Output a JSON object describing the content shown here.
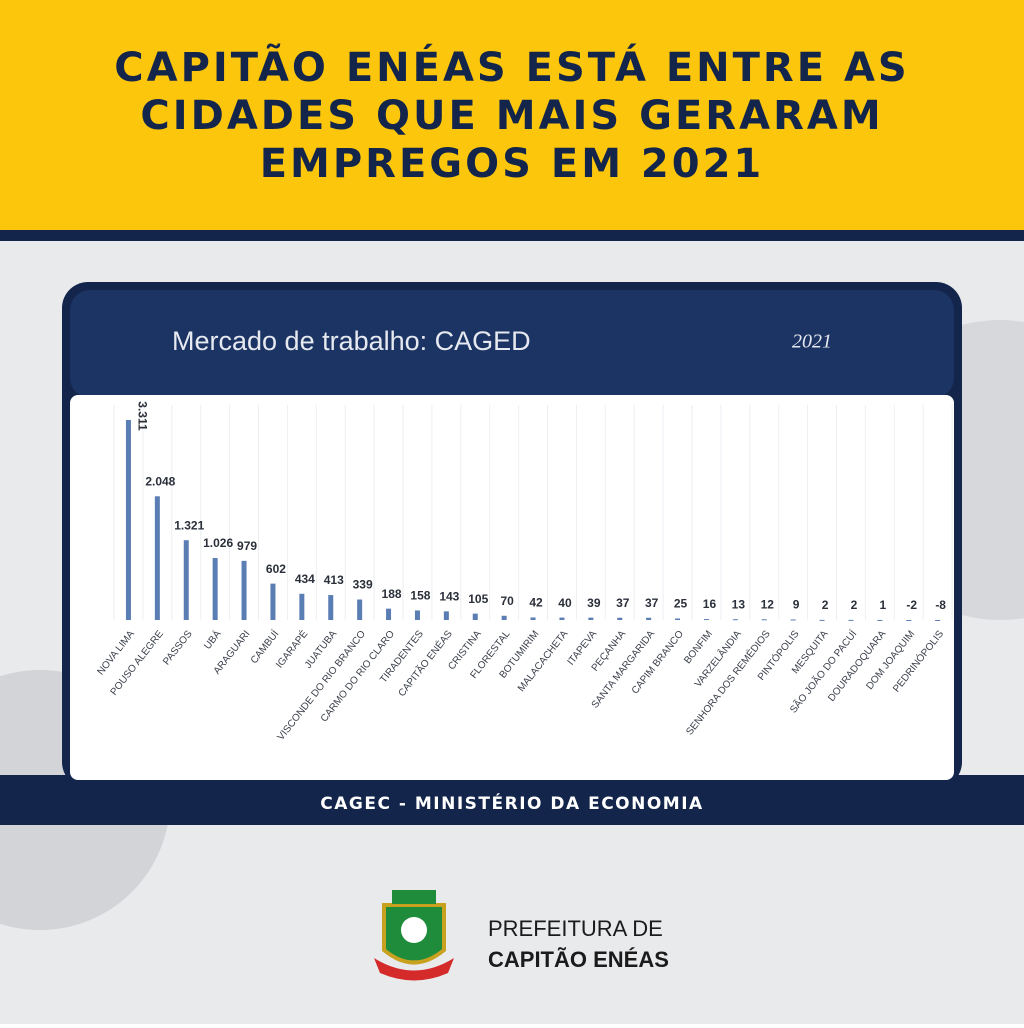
{
  "header": {
    "title_lines": [
      "CAPITÃO ENÉAS ESTÁ ENTRE AS",
      "CIDADES QUE MAIS GERARAM",
      "EMPREGOS EM 2021"
    ]
  },
  "chart_data": {
    "type": "bar",
    "title": "Mercado de trabalho: CAGED",
    "subtitle": "2021",
    "categories": [
      "NOVA LIMA",
      "POUSO ALEGRE",
      "PASSOS",
      "UBÁ",
      "ARAGUARI",
      "CAMBUÍ",
      "IGARAPÉ",
      "JUATUBA",
      "VISCONDE DO RIO BRANCO",
      "CARMO DO RIO CLARO",
      "TIRADENTES",
      "CAPITÃO ENÉAS",
      "CRISTINA",
      "FLORESTAL",
      "BOTUMIRIM",
      "MALACACHETA",
      "ITAPEVA",
      "PEÇANHA",
      "SANTA MARGARIDA",
      "CAPIM BRANCO",
      "BONFIM",
      "VARZELÂNDIA",
      "SENHORA DOS REMÉDIOS",
      "PINTÓPOLIS",
      "MESQUITA",
      "SÃO JOÃO DO PACUÍ",
      "DOURADOQUARA",
      "DOM JOAQUIM",
      "PEDRINÓPOLIS"
    ],
    "values": [
      3311,
      2048,
      1321,
      1026,
      979,
      602,
      434,
      413,
      339,
      188,
      158,
      143,
      105,
      70,
      42,
      40,
      39,
      37,
      37,
      25,
      16,
      13,
      12,
      9,
      2,
      2,
      1,
      -2,
      -8
    ],
    "value_labels": [
      "3.311",
      "2.048",
      "1.321",
      "1.026",
      "979",
      "602",
      "434",
      "413",
      "339",
      "188",
      "158",
      "143",
      "105",
      "70",
      "42",
      "40",
      "39",
      "37",
      "37",
      "25",
      "16",
      "13",
      "12",
      "9",
      "2",
      "2",
      "1",
      "-2",
      "-8"
    ],
    "color": "#5a7db3"
  },
  "footer": {
    "source": "CAGEC - MINISTÉRIO DA ECONOMIA",
    "org_line1": "PREFEITURA DE",
    "org_line2": "CAPITÃO ENÉAS"
  }
}
